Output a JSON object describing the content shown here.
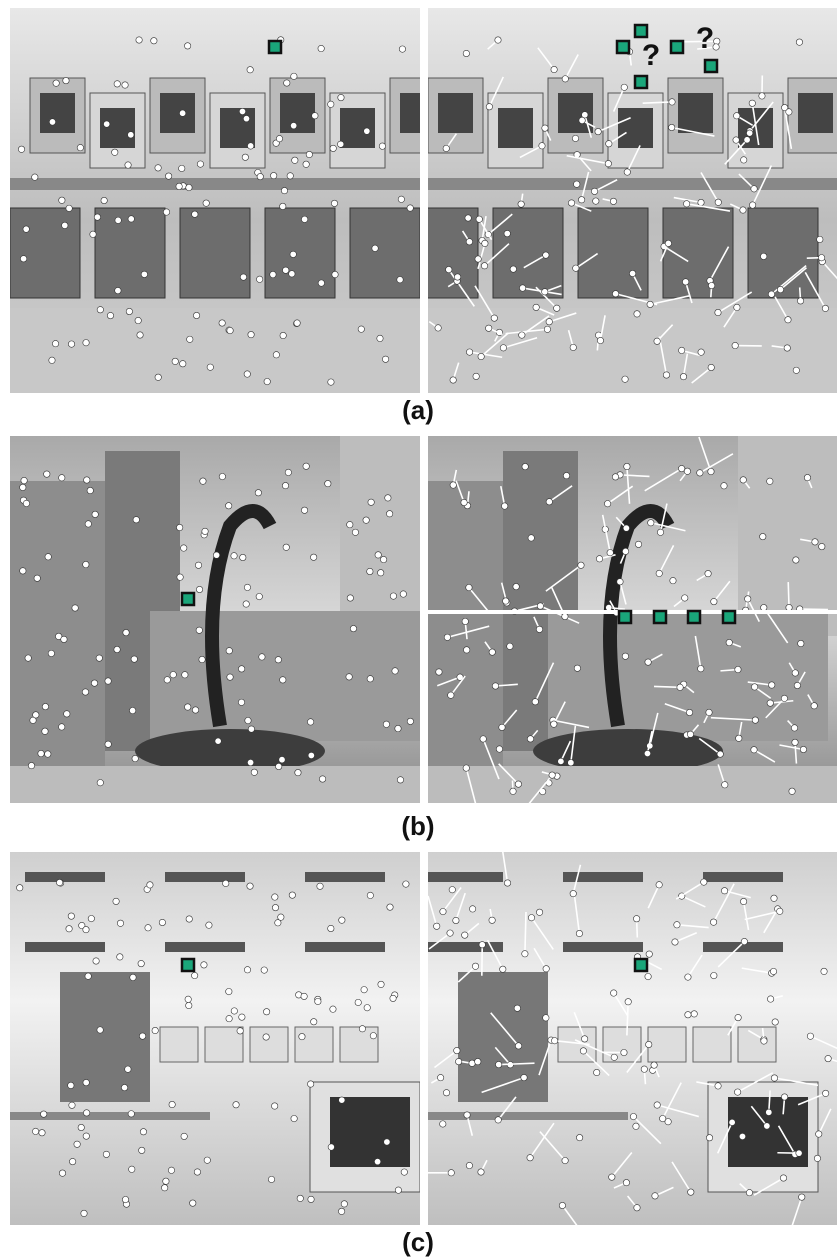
{
  "panels": [
    {
      "label": "(a)"
    },
    {
      "label": "(b)"
    },
    {
      "label": "(c)"
    }
  ],
  "annotations": [
    "?",
    "?"
  ]
}
